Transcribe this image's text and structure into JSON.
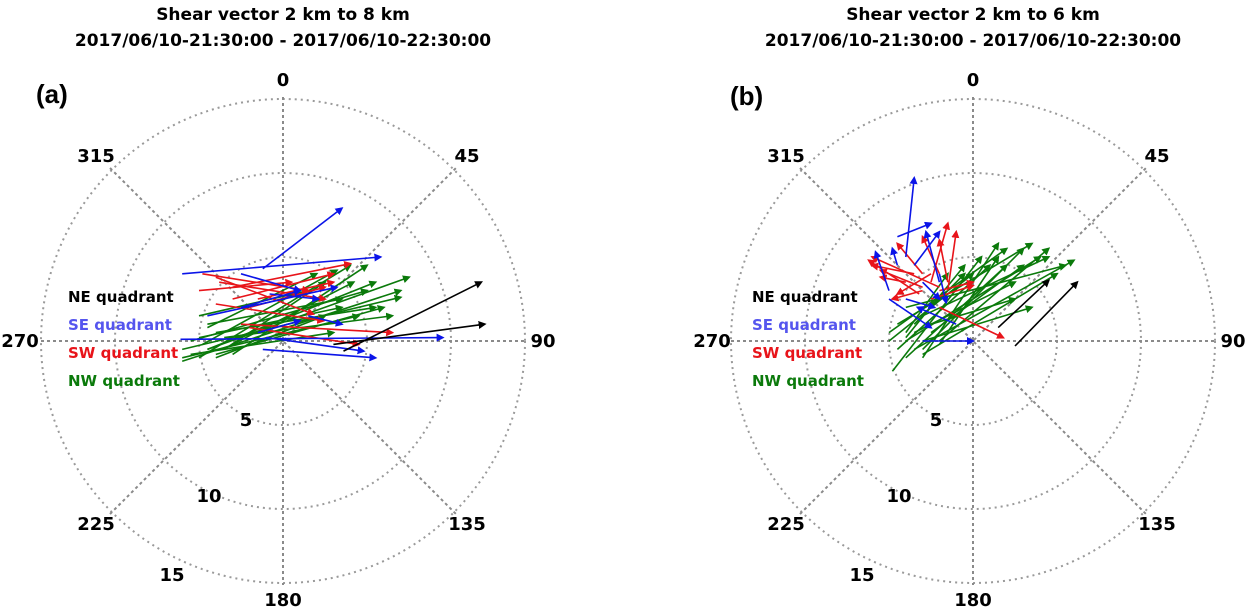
{
  "colors": {
    "NE": "#000000",
    "SE": "#0b14e8",
    "SW": "#e8141a",
    "NW": "#0b7a0b",
    "SE_legend": "#5555ee",
    "grid": "#8a8a8a"
  },
  "chart_data": [
    {
      "type": "polar-vector",
      "panel_label": "(a)",
      "title": "Shear vector 2 km to 8 km",
      "subtitle": "2017/06/10-21:30:00 - 2017/06/10-22:30:00",
      "angle_ticks": [
        "0",
        "45",
        "90",
        "135",
        "180",
        "225",
        "270",
        "315"
      ],
      "radial_ticks": [
        "5",
        "10",
        "15"
      ],
      "rmax": 17,
      "legend": [
        {
          "key": "NE",
          "label": "NE quadrant"
        },
        {
          "key": "SE",
          "label": "SE quadrant"
        },
        {
          "key": "SW",
          "label": "SW quadrant"
        },
        {
          "key": "NW",
          "label": "NW quadrant"
        }
      ],
      "vectors": {
        "NE": [
          [
            3.6,
            -0.6,
            11.8,
            3.5
          ],
          [
            3.0,
            -0.2,
            12.0,
            1.0
          ]
        ],
        "SE": [
          [
            -1.2,
            4.3,
            3.5,
            7.9
          ],
          [
            -6.1,
            0.1,
            9.5,
            0.2
          ],
          [
            -6.0,
            4.0,
            5.8,
            5.0
          ],
          [
            -4.5,
            1.5,
            3.2,
            3.2
          ],
          [
            -2.5,
            2.0,
            1.0,
            3.0
          ],
          [
            -1.2,
            -0.5,
            5.5,
            -1.0
          ],
          [
            -1.0,
            0.2,
            4.8,
            -0.6
          ],
          [
            -0.8,
            2.8,
            2.1,
            2.5
          ],
          [
            1.5,
            1.5,
            3.5,
            1.0
          ],
          [
            -2.5,
            4.0,
            1.0,
            3.0
          ],
          [
            -1.5,
            0.5,
            1.0,
            1.2
          ]
        ],
        "SW": [
          [
            -4.8,
            4.0,
            1.5,
            3.0
          ],
          [
            -3.8,
            3.5,
            2.5,
            2.5
          ],
          [
            -5.0,
            3.0,
            0.5,
            3.5
          ],
          [
            -3.0,
            2.5,
            3.0,
            4.0
          ],
          [
            -2.5,
            1.0,
            6.5,
            0.5
          ],
          [
            -4.0,
            3.8,
            1.8,
            1.6
          ],
          [
            -2.0,
            2.0,
            2.5,
            3.2
          ],
          [
            -4.0,
            2.2,
            2.4,
            1.2
          ],
          [
            -2.0,
            0.8,
            4.5,
            -0.2
          ],
          [
            -3.0,
            3.2,
            4.0,
            4.6
          ],
          [
            -1.5,
            2.5,
            3.0,
            3.5
          ]
        ],
        "NW": [
          [
            -4.5,
            -0.5,
            5.5,
            3.5
          ],
          [
            -5.0,
            -1.0,
            4.0,
            4.5
          ],
          [
            -4.0,
            -0.8,
            6.0,
            2.0
          ],
          [
            -6.0,
            -0.5,
            7.0,
            2.6
          ],
          [
            -5.5,
            0.0,
            5.0,
            3.0
          ],
          [
            -4.8,
            -0.2,
            3.2,
            4.2
          ],
          [
            -4.0,
            0.5,
            5.5,
            2.0
          ],
          [
            -3.5,
            0.2,
            6.5,
            1.5
          ],
          [
            -3.0,
            -0.8,
            5.0,
            4.5
          ],
          [
            -5.0,
            0.2,
            3.5,
            2.0
          ],
          [
            -3.5,
            -0.5,
            2.5,
            3.5
          ],
          [
            -6.0,
            -1.0,
            4.5,
            1.5
          ],
          [
            -4.5,
            0.8,
            2.0,
            4.0
          ],
          [
            -5.0,
            1.5,
            1.5,
            3.0
          ],
          [
            -4.0,
            -1.0,
            2.5,
            1.5
          ],
          [
            -5.5,
            -0.8,
            3.0,
            0.5
          ],
          [
            -4.5,
            -0.5,
            7.5,
            3.8
          ],
          [
            -6.0,
            -1.2,
            7.0,
            3.0
          ],
          [
            -3.0,
            -0.2,
            4.2,
            3.5
          ],
          [
            -4.5,
            1.0,
            3.5,
            2.5
          ]
        ]
      }
    },
    {
      "type": "polar-vector",
      "panel_label": "(b)",
      "title": "Shear vector 2 km to 6 km",
      "subtitle": "2017/06/10-21:30:00 - 2017/06/10-22:30:00",
      "angle_ticks": [
        "0",
        "45",
        "90",
        "135",
        "180",
        "225",
        "270",
        "315"
      ],
      "radial_ticks": [
        "5",
        "10",
        "15"
      ],
      "rmax": 17,
      "legend": [
        {
          "key": "NE",
          "label": "NE quadrant"
        },
        {
          "key": "SE",
          "label": "SE quadrant"
        },
        {
          "key": "SW",
          "label": "SW quadrant"
        },
        {
          "key": "NW",
          "label": "NW quadrant"
        }
      ],
      "vectors": {
        "NE": [
          [
            1.5,
            0.8,
            4.5,
            3.6
          ],
          [
            2.5,
            -0.3,
            6.2,
            3.5
          ]
        ],
        "SE": [
          [
            -4.0,
            5.0,
            -3.5,
            9.7
          ],
          [
            -4.5,
            6.2,
            -2.5,
            7.0
          ],
          [
            -3.5,
            4.5,
            -2.0,
            6.5
          ],
          [
            -5.0,
            3.0,
            -5.8,
            5.3
          ],
          [
            -2.0,
            3.5,
            -2.8,
            6.5
          ],
          [
            -4.5,
            4.5,
            -4.8,
            5.5
          ],
          [
            -4.0,
            2.5,
            -2.3,
            2.0
          ],
          [
            -3.0,
            3.5,
            -2.0,
            2.5
          ],
          [
            -2.0,
            4.0,
            -1.6,
            2.3
          ],
          [
            -1.0,
            1.0,
            -3.3,
            2.0
          ],
          [
            -5.0,
            2.5,
            -2.5,
            0.8
          ],
          [
            -3.0,
            0.0,
            0.0,
            0.0
          ]
        ],
        "SW": [
          [
            -2.5,
            3.5,
            -1.5,
            7.0
          ],
          [
            -2.0,
            4.0,
            -3.0,
            6.2
          ],
          [
            -3.0,
            4.0,
            -4.5,
            5.8
          ],
          [
            -2.0,
            3.2,
            -6.0,
            5.0
          ],
          [
            -3.5,
            4.0,
            -6.0,
            4.5
          ],
          [
            -2.5,
            4.0,
            -4.5,
            2.8
          ],
          [
            -3.0,
            3.0,
            -4.8,
            2.5
          ],
          [
            -2.5,
            2.5,
            0.0,
            3.3
          ],
          [
            -2.0,
            3.0,
            0.0,
            3.5
          ],
          [
            -1.5,
            3.0,
            -1.0,
            6.5
          ],
          [
            -3.0,
            3.2,
            -5.5,
            4.2
          ],
          [
            -4.0,
            3.5,
            -5.5,
            3.8
          ],
          [
            -1.5,
            3.5,
            -2.0,
            6.0
          ],
          [
            -3.2,
            2.8,
            -6.2,
            4.8
          ],
          [
            -2.0,
            2.0,
            1.8,
            0.2
          ]
        ],
        "NW": [
          [
            -4.5,
            -0.5,
            1.0,
            4.5
          ],
          [
            -4.0,
            -1.0,
            2.0,
            4.5
          ],
          [
            -3.0,
            -0.5,
            3.0,
            5.5
          ],
          [
            -4.0,
            0.0,
            4.0,
            5.0
          ],
          [
            -5.0,
            0.5,
            2.0,
            5.5
          ],
          [
            -3.5,
            0.5,
            2.5,
            3.5
          ],
          [
            -2.0,
            -0.2,
            1.5,
            5.0
          ],
          [
            -4.5,
            1.0,
            3.5,
            5.8
          ],
          [
            -3.0,
            1.5,
            4.5,
            5.0
          ],
          [
            -4.8,
            -1.8,
            0.5,
            5.0
          ],
          [
            -4.0,
            0.2,
            -0.5,
            4.5
          ],
          [
            -3.5,
            1.0,
            -0.5,
            4.0
          ],
          [
            -2.5,
            0.5,
            3.0,
            4.5
          ],
          [
            -3.0,
            -0.8,
            5.0,
            4.0
          ],
          [
            -4.0,
            2.0,
            5.5,
            4.5
          ],
          [
            -2.0,
            0.0,
            4.5,
            5.5
          ],
          [
            -3.0,
            -1.0,
            1.5,
            5.8
          ],
          [
            -5.0,
            0.0,
            0.0,
            4.0
          ],
          [
            -3.5,
            -0.5,
            6.0,
            4.8
          ],
          [
            -2.5,
            1.0,
            2.5,
            2.5
          ],
          [
            -4.0,
            0.5,
            -1.5,
            4.0
          ],
          [
            -3.0,
            0.0,
            3.5,
            2.0
          ]
        ]
      }
    }
  ]
}
